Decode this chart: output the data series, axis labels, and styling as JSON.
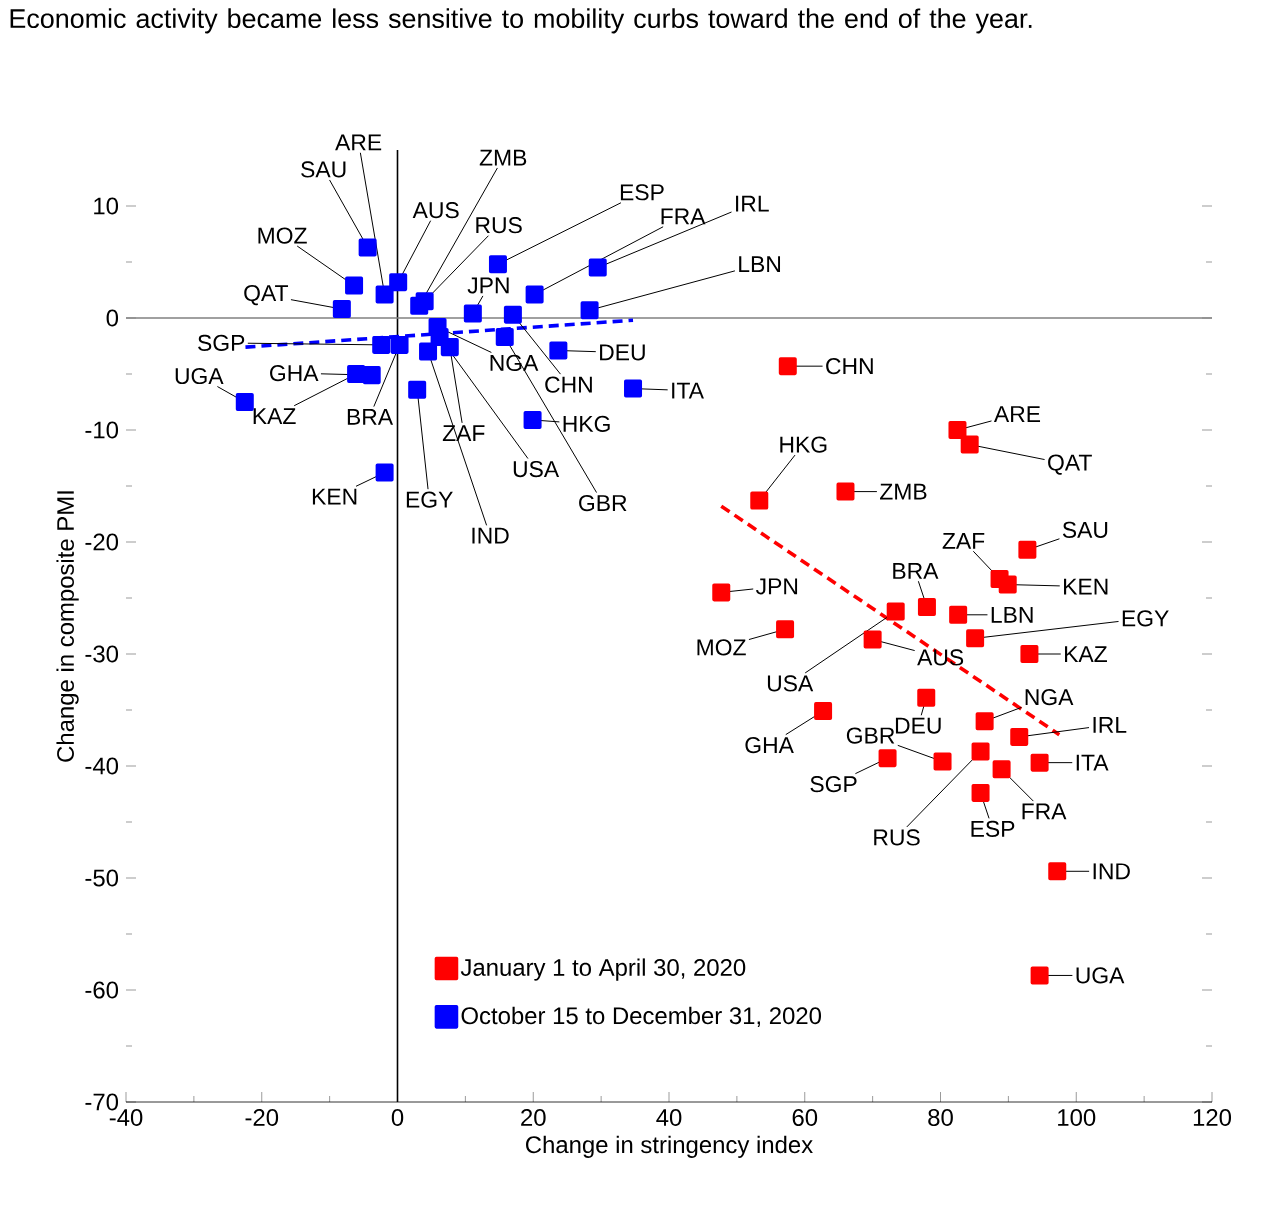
{
  "chart_data": {
    "type": "scatter",
    "title": "Economic activity became less sensitive to mobility curbs toward the end of the year.",
    "xlabel": "Change in stringency index",
    "ylabel": "Change in composite PMI",
    "xlim": [
      -40,
      120
    ],
    "ylim": [
      -70,
      15
    ],
    "xticks": [
      -40,
      -20,
      0,
      20,
      40,
      60,
      80,
      100,
      120
    ],
    "yticks": [
      -70,
      -60,
      -50,
      -40,
      -30,
      -20,
      -10,
      0,
      10
    ],
    "marker": "square",
    "legend": "bottom left",
    "ref_lines": [
      {
        "axis": "x",
        "value": 0,
        "color": "#000000"
      },
      {
        "axis": "y",
        "value": 0,
        "color": "#808080"
      }
    ],
    "series": [
      {
        "name": "January 1 to April 30, 2020",
        "color": "#ff0000",
        "x": [
          57.5,
          82.5,
          84.3,
          53.3,
          66.0,
          92.8,
          88.7,
          89.9,
          47.7,
          78.0,
          73.4,
          82.6,
          57.1,
          85.1,
          70.0,
          93.1,
          77.9,
          62.7,
          86.5,
          91.6,
          72.2,
          80.3,
          94.6,
          85.9,
          89.0,
          85.9,
          97.2,
          94.6
        ],
        "values": [
          -4.3,
          -10.0,
          -11.3,
          -16.3,
          -15.5,
          -20.7,
          -23.3,
          -23.8,
          -24.5,
          -25.8,
          -26.2,
          -26.5,
          -27.8,
          -28.6,
          -28.7,
          -30.0,
          -33.9,
          -35.1,
          -36.0,
          -37.4,
          -39.3,
          -39.6,
          -39.7,
          -38.7,
          -40.3,
          -42.4,
          -49.4,
          -58.7
        ]
      },
      {
        "name": "October 15 to December 31, 2020",
        "color": "#0000ff",
        "x": [
          -4.4,
          -6.4,
          -1.9,
          0.1,
          -8.2,
          3.2,
          4.0,
          14.8,
          20.2,
          29.5,
          28.3,
          11.1,
          17.0,
          5.9,
          23.7,
          15.8,
          6.2,
          7.7,
          4.5,
          2.9,
          -2.4,
          0.3,
          -3.8,
          -6.1,
          -22.5,
          -1.9,
          19.9,
          34.7
        ],
        "values": [
          6.3,
          2.9,
          2.1,
          3.2,
          0.8,
          1.1,
          1.5,
          4.8,
          2.1,
          4.5,
          0.7,
          0.4,
          0.3,
          -0.8,
          -2.9,
          -1.7,
          -1.7,
          -2.6,
          -3.0,
          -6.4,
          -2.4,
          -2.4,
          -5.1,
          -5.0,
          -7.5,
          -13.8,
          -9.1,
          -6.3
        ]
      },
      {
        "type": "line",
        "color": "#ff0000",
        "line_style": "dashed",
        "marker": "none",
        "x": [
          47.7,
          97.5
        ],
        "values": [
          -16.8,
          -37.2
        ]
      },
      {
        "type": "line",
        "color": "#0000ff",
        "line_style": "dashed",
        "marker": "none",
        "x": [
          -22.4,
          34.7
        ],
        "values": [
          -2.6,
          -0.2
        ]
      }
    ],
    "annotations": [
      {
        "text": "CHN",
        "x": 57.5,
        "y": -4.3
      },
      {
        "text": "ARE",
        "x": 82.5,
        "y": -10.0
      },
      {
        "text": "QAT",
        "x": 84.3,
        "y": -11.3
      },
      {
        "text": "HKG",
        "x": 53.3,
        "y": -16.3
      },
      {
        "text": "ZMB",
        "x": 66.0,
        "y": -15.5
      },
      {
        "text": "SAU",
        "x": 92.8,
        "y": -20.7
      },
      {
        "text": "ZAF",
        "x": 88.7,
        "y": -23.3
      },
      {
        "text": "KEN",
        "x": 89.9,
        "y": -23.8
      },
      {
        "text": "JPN",
        "x": 47.7,
        "y": -24.5
      },
      {
        "text": "BRA",
        "x": 78.0,
        "y": -25.8
      },
      {
        "text": "USA",
        "x": 73.4,
        "y": -26.2
      },
      {
        "text": "LBN",
        "x": 82.6,
        "y": -26.5
      },
      {
        "text": "MOZ",
        "x": 57.1,
        "y": -27.8
      },
      {
        "text": "EGY",
        "x": 85.1,
        "y": -28.6
      },
      {
        "text": "AUS",
        "x": 70.0,
        "y": -28.7
      },
      {
        "text": "KAZ",
        "x": 93.1,
        "y": -30.0
      },
      {
        "text": "DEU",
        "x": 77.9,
        "y": -33.9
      },
      {
        "text": "GHA",
        "x": 62.7,
        "y": -35.1
      },
      {
        "text": "NGA",
        "x": 86.5,
        "y": -36.0
      },
      {
        "text": "IRL",
        "x": 91.6,
        "y": -37.4
      },
      {
        "text": "SGP",
        "x": 72.2,
        "y": -39.3
      },
      {
        "text": "GBR",
        "x": 80.3,
        "y": -39.6
      },
      {
        "text": "ITA",
        "x": 94.6,
        "y": -39.7
      },
      {
        "text": "RUS",
        "x": 85.9,
        "y": -38.7
      },
      {
        "text": "FRA",
        "x": 89.0,
        "y": -40.3
      },
      {
        "text": "ESP",
        "x": 85.9,
        "y": -42.4
      },
      {
        "text": "IND",
        "x": 97.2,
        "y": -49.4
      },
      {
        "text": "UGA",
        "x": 94.6,
        "y": -58.7
      },
      {
        "text": "SAU",
        "x": -4.4,
        "y": 6.3
      },
      {
        "text": "MOZ",
        "x": -6.4,
        "y": 2.9
      },
      {
        "text": "ARE",
        "x": -1.9,
        "y": 2.1
      },
      {
        "text": "AUS",
        "x": 0.1,
        "y": 3.2
      },
      {
        "text": "QAT",
        "x": -8.2,
        "y": 0.8
      },
      {
        "text": "ZMB",
        "x": 3.2,
        "y": 1.1
      },
      {
        "text": "RUS",
        "x": 4.0,
        "y": 1.5
      },
      {
        "text": "ESP",
        "x": 14.8,
        "y": 4.8
      },
      {
        "text": "FRA",
        "x": 20.2,
        "y": 2.1
      },
      {
        "text": "IRL",
        "x": 29.5,
        "y": 4.5
      },
      {
        "text": "LBN",
        "x": 28.3,
        "y": 0.7
      },
      {
        "text": "JPN",
        "x": 11.1,
        "y": 0.4
      },
      {
        "text": "CHN",
        "x": 17.0,
        "y": 0.3
      },
      {
        "text": "NGA",
        "x": 5.9,
        "y": -0.8
      },
      {
        "text": "DEU",
        "x": 23.7,
        "y": -2.9
      },
      {
        "text": "GBR",
        "x": 15.8,
        "y": -1.7
      },
      {
        "text": "USA",
        "x": 6.2,
        "y": -1.7
      },
      {
        "text": "ZAF",
        "x": 7.7,
        "y": -2.6
      },
      {
        "text": "IND",
        "x": 4.5,
        "y": -3.0
      },
      {
        "text": "EGY",
        "x": 2.9,
        "y": -6.4
      },
      {
        "text": "SGP",
        "x": -2.4,
        "y": -2.4
      },
      {
        "text": "BRA",
        "x": 0.3,
        "y": -2.4
      },
      {
        "text": "GHA",
        "x": -3.8,
        "y": -5.1
      },
      {
        "text": "KAZ",
        "x": -6.1,
        "y": -5.0
      },
      {
        "text": "UGA",
        "x": -22.5,
        "y": -7.5
      },
      {
        "text": "KEN",
        "x": -1.9,
        "y": -13.8
      },
      {
        "text": "HKG",
        "x": 19.9,
        "y": -9.1
      },
      {
        "text": "ITA",
        "x": 34.7,
        "y": -6.3
      }
    ]
  }
}
